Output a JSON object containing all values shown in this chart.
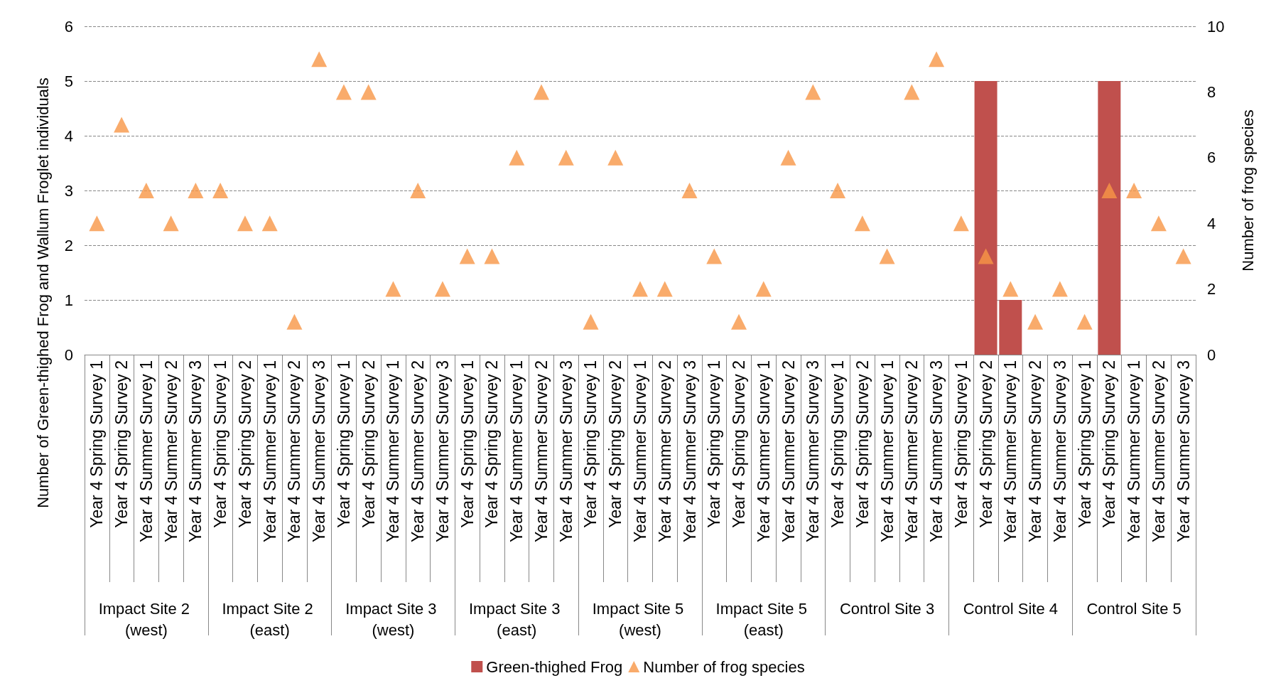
{
  "chart_data": {
    "type": "bar",
    "ylabel": "Number of Green-thighed Frog and Wallum Froglet individuals",
    "y2label": "Number of frog species",
    "categories": [
      "Year 4 Spring Survey 1",
      "Year 4 Spring Survey 2",
      "Year 4 Summer Survey 1",
      "Year 4 Summer Survey 2",
      "Year 4 Summer Survey 3",
      "Year 4 Spring Survey 1",
      "Year 4 Spring Survey 2",
      "Year 4 Summer Survey 1",
      "Year 4 Summer Survey 2",
      "Year 4 Summer Survey 3",
      "Year 4 Spring Survey 1",
      "Year 4 Spring Survey 2",
      "Year 4 Summer Survey 1",
      "Year 4 Summer Survey 2",
      "Year 4 Summer Survey 3",
      "Year 4 Spring Survey 1",
      "Year 4 Spring Survey 2",
      "Year 4 Summer Survey 1",
      "Year 4 Summer Survey 2",
      "Year 4 Summer Survey 3",
      "Year 4 Spring Survey 1",
      "Year 4 Spring Survey 2",
      "Year 4 Summer Survey 1",
      "Year 4 Summer Survey 2",
      "Year 4 Summer Survey 3",
      "Year 4 Spring Survey 1",
      "Year 4 Spring Survey 2",
      "Year 4 Summer Survey 1",
      "Year 4 Summer Survey 2",
      "Year 4 Summer Survey 3",
      "Year 4 Spring Survey 1",
      "Year 4 Spring Survey 2",
      "Year 4 Summer Survey 1",
      "Year 4 Summer Survey 2",
      "Year 4 Summer Survey 3",
      "Year 4 Spring Survey 1",
      "Year 4 Spring Survey 2",
      "Year 4 Summer Survey 1",
      "Year 4 Summer Survey 2",
      "Year 4 Summer Survey 3",
      "Year 4 Spring Survey 1",
      "Year 4 Spring Survey 2",
      "Year 4 Summer Survey 1",
      "Year 4 Summer Survey 2",
      "Year 4 Summer Survey 3"
    ],
    "annotations": [
      "Impact Site 2 (west)",
      "Impact Site 2 (east)",
      "Impact Site 3 (west)",
      "Impact Site 3 (east)",
      "Impact Site 5 (west)",
      "Impact Site 5 (east)",
      "Control Site 3",
      "Control Site 4",
      "Control Site 5"
    ],
    "series": [
      {
        "name": "Green-thighed Frog",
        "color": "#c0504d",
        "values": [
          0,
          0,
          0,
          0,
          0,
          0,
          0,
          0,
          0,
          0,
          0,
          0,
          0,
          0,
          0,
          0,
          0,
          0,
          0,
          0,
          0,
          0,
          0,
          0,
          0,
          0,
          0,
          0,
          0,
          0,
          0,
          0,
          0,
          0,
          0,
          0,
          5,
          1,
          0,
          0,
          0,
          5,
          0,
          0,
          0
        ]
      },
      {
        "name": "Number of frog species",
        "type": "scatter",
        "axis": "y2",
        "color": "#f79646",
        "values": [
          4,
          7,
          5,
          4,
          5,
          5,
          4,
          4,
          1,
          9,
          8,
          8,
          2,
          5,
          2,
          3,
          3,
          6,
          8,
          6,
          1,
          6,
          2,
          2,
          5,
          3,
          1,
          2,
          6,
          8,
          5,
          4,
          3,
          8,
          9,
          4,
          3,
          2,
          1,
          2,
          1,
          5,
          5,
          4,
          3
        ]
      }
    ],
    "marker": "triangle",
    "ylim": [
      0,
      6
    ],
    "yticks": [
      0,
      1,
      2,
      3,
      4,
      5,
      6
    ],
    "y2lim": [
      0,
      10
    ],
    "y2ticks": [
      0,
      2,
      4,
      6,
      8,
      10
    ],
    "grid": "y",
    "legend": "bottom"
  }
}
